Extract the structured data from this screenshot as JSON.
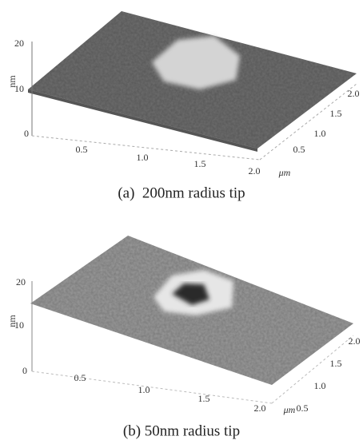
{
  "panels": [
    {
      "z_ticks": [
        "0",
        "10",
        "20"
      ],
      "z_label": "nm",
      "x_ticks": [
        "0.5",
        "1.0",
        "1.5",
        "2.0"
      ],
      "x_unit": "μm",
      "y_ticks": [
        "0.5",
        "1.0",
        "1.5",
        "2.0"
      ],
      "caption": "(a)  200nm radius tip"
    },
    {
      "z_ticks": [
        "0",
        "10",
        "20"
      ],
      "z_label": "nm",
      "x_ticks": [
        "0.5",
        "1.0",
        "1.5",
        "2.0"
      ],
      "x_unit": "μm",
      "y_ticks": [
        "0.5",
        "1.0",
        "1.5",
        "2.0"
      ],
      "caption": "(b) 50nm radius tip"
    }
  ]
}
